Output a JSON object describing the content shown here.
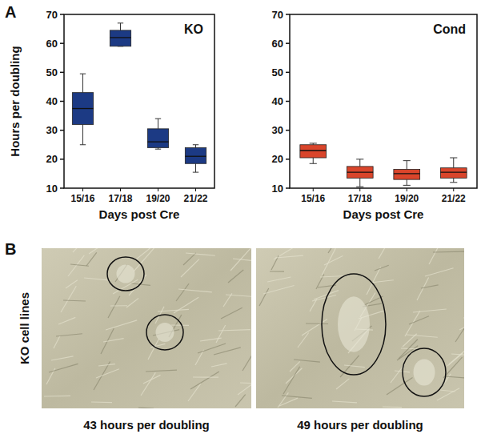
{
  "chart_data": [
    {
      "type": "box",
      "title": "KO",
      "y_label": "Hours per doubling",
      "x_label": "Days post Cre",
      "categories": [
        "15/16",
        "17/18",
        "19/20",
        "21/22"
      ],
      "boxes": {
        "min": [
          25,
          59,
          23.5,
          15.5
        ],
        "q1": [
          32,
          59,
          24,
          18.5
        ],
        "median": [
          37.5,
          62,
          26,
          21
        ],
        "q3": [
          43,
          64.5,
          30.5,
          24
        ],
        "max": [
          49.5,
          67,
          34,
          25
        ]
      },
      "color": "#1c3a84",
      "ylim": [
        10,
        70
      ],
      "yticks": [
        10,
        20,
        30,
        40,
        50,
        60,
        70
      ]
    },
    {
      "type": "box",
      "title": "Cond",
      "x_label": "Days post Cre",
      "categories": [
        "15/16",
        "17/18",
        "19/20",
        "21/22"
      ],
      "boxes": {
        "min": [
          18.5,
          10.5,
          11,
          12
        ],
        "q1": [
          20.5,
          13.5,
          13,
          13.5
        ],
        "median": [
          23,
          15.5,
          15,
          15.5
        ],
        "q3": [
          25,
          17.5,
          16.5,
          17
        ],
        "max": [
          25.5,
          20,
          19.5,
          20.5
        ]
      },
      "color": "#d9452b",
      "ylim": [
        10,
        70
      ],
      "yticks": [
        10,
        20,
        30,
        40,
        50,
        60,
        70
      ]
    }
  ],
  "figure": {
    "panel_labels": [
      "A",
      "B"
    ],
    "panel_b": {
      "row_label": "KO cell lines",
      "captions": [
        "43 hours per doubling",
        "49 hours per doubling"
      ]
    }
  }
}
